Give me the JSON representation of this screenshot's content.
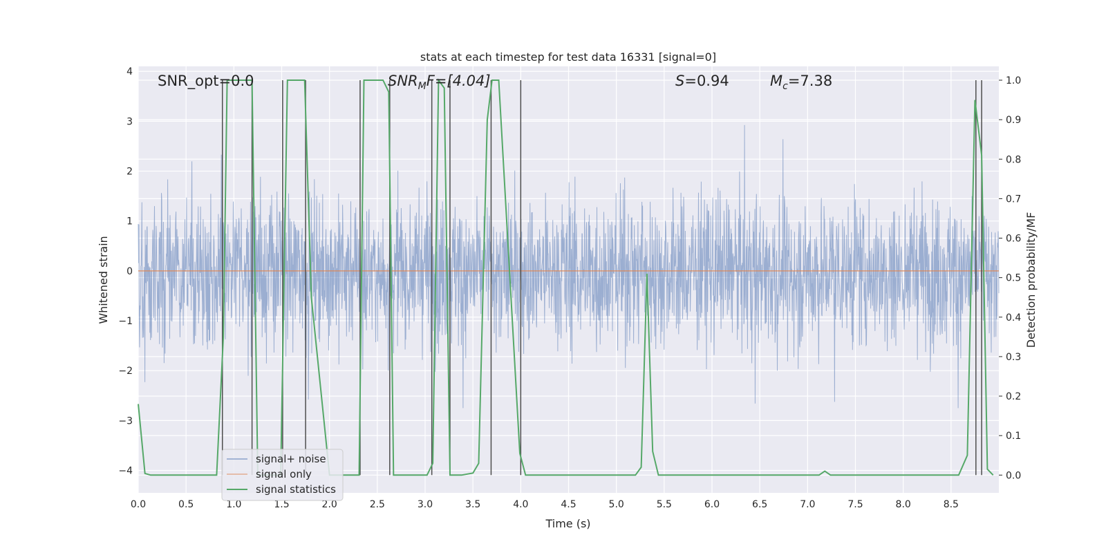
{
  "chart_data": {
    "type": "line",
    "title": "stats at each timestep for test data 16331 [signal=0]",
    "xlabel": "Time (s)",
    "ylabel_left": "Whitened strain",
    "ylabel_right": "Detection probability/MF",
    "xlim": [
      0.0,
      9.0
    ],
    "ylim_left": [
      -4.45,
      4.1
    ],
    "ylim_right": [
      -0.045,
      1.035
    ],
    "x_ticks": [
      "0.0",
      "0.5",
      "1.0",
      "1.5",
      "2.0",
      "2.5",
      "3.0",
      "3.5",
      "4.0",
      "4.5",
      "5.0",
      "5.5",
      "6.0",
      "6.5",
      "7.0",
      "7.5",
      "8.0",
      "8.5"
    ],
    "y_ticks_left": [
      "−4",
      "−3",
      "−2",
      "−1",
      "0",
      "1",
      "2",
      "3",
      "4"
    ],
    "y_ticks_right": [
      "0.0",
      "0.1",
      "0.2",
      "0.3",
      "0.4",
      "0.5",
      "0.6",
      "0.7",
      "0.8",
      "0.9",
      "1.0"
    ],
    "grid": true,
    "legend_position": "lower-left",
    "annotations": {
      "snr_opt": "SNR_opt=0.0",
      "snr_mf_main": "SNR",
      "snr_mf_sub": "M",
      "snr_mf_rest": "F=[4.04]",
      "s_main": "S",
      "s_rest": "=0.94",
      "mc_main": "M",
      "mc_sub": "c",
      "mc_rest": "=7.38"
    },
    "series": [
      {
        "name": "signal+ noise",
        "color": "#4c72b0",
        "kind": "noise",
        "amplitude_envelope": [
          -2.7,
          3.0
        ]
      },
      {
        "name": "signal only",
        "color": "#dd8452",
        "values_constant": 0.0
      },
      {
        "name": "signal statistics",
        "color": "#55a868",
        "x": [
          0.0,
          0.07,
          0.13,
          0.82,
          0.89,
          0.93,
          1.19,
          1.25,
          1.49,
          1.56,
          1.74,
          1.81,
          2.0,
          2.31,
          2.36,
          2.56,
          2.62,
          2.67,
          2.74,
          3.02,
          3.08,
          3.14,
          3.2,
          3.26,
          3.31,
          3.38,
          3.5,
          3.56,
          3.65,
          3.7,
          3.77,
          3.99,
          4.05,
          4.12,
          5.2,
          5.26,
          5.32,
          5.38,
          5.44,
          7.12,
          7.18,
          7.24,
          7.42,
          8.58,
          8.67,
          8.75,
          8.82,
          8.88,
          8.94
        ],
        "y": [
          0.18,
          0.004,
          0.0,
          0.0,
          0.35,
          1.0,
          1.0,
          0.0,
          0.0,
          1.0,
          1.0,
          0.45,
          0.0,
          0.0,
          1.0,
          1.0,
          0.97,
          0.0,
          0.0,
          0.0,
          0.03,
          1.0,
          0.98,
          0.0,
          0.0,
          0.0,
          0.005,
          0.03,
          0.9,
          1.0,
          1.0,
          0.055,
          0.0,
          0.0,
          0.0,
          0.02,
          0.51,
          0.06,
          0.0,
          0.0,
          0.01,
          0.0,
          0.0,
          0.0,
          0.05,
          0.95,
          0.81,
          0.015,
          0.0
        ]
      },
      {
        "name": "",
        "color": "#4d4d4d",
        "kind": "vlines",
        "x": [
          0.88,
          1.19,
          1.51,
          1.75,
          2.32,
          2.63,
          3.07,
          3.26,
          3.69,
          4.0,
          8.76,
          8.82
        ]
      }
    ]
  }
}
